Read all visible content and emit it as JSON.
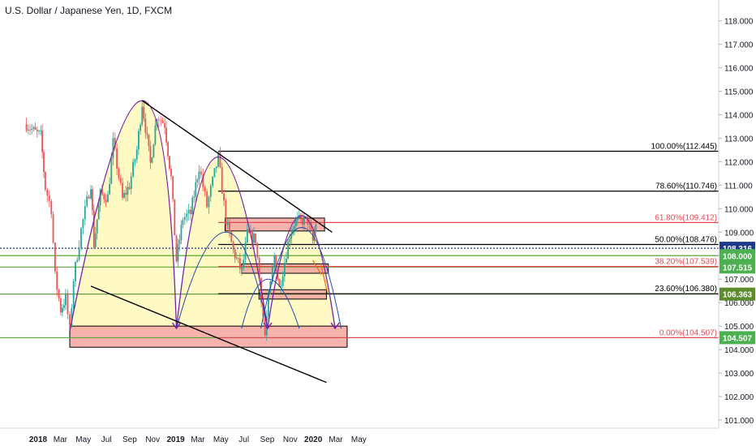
{
  "header": {
    "title": "U.S. Dollar / Japanese Yen, 1D, FXCM"
  },
  "colors": {
    "up": "#26a69a",
    "down": "#ef5350",
    "hline": "#5aa830",
    "fib_red": "#e8474f",
    "arc": "#7b1fa2",
    "blue_arc": "#1e4ba8",
    "zone_fill": "#f4a6a0",
    "tag_green": "#4caf50",
    "tag_navy": "#1e3a8a",
    "tag_green_dark": "#5d8c2e"
  },
  "chart_data": {
    "type": "candlestick",
    "title": "U.S. Dollar / Japanese Yen, 1D, FXCM",
    "x_ticks": [
      "2018",
      "Mar",
      "May",
      "Jul",
      "Sep",
      "Nov",
      "2019",
      "Mar",
      "May",
      "Jul",
      "Sep",
      "Nov",
      "2020",
      "Mar",
      "May"
    ],
    "y_ticks": [
      "118.000",
      "117.000",
      "116.000",
      "115.000",
      "114.000",
      "113.000",
      "112.000",
      "111.000",
      "110.000",
      "109.000",
      "108.000",
      "107.000",
      "106.000",
      "105.000",
      "104.000",
      "103.000",
      "102.000",
      "101.000"
    ],
    "ylim": [
      100.5,
      118.5
    ],
    "price_path": [
      [
        "2017-12-01",
        113.6
      ],
      [
        "2017-12-20",
        113.3
      ],
      [
        "2018-01-08",
        113.1
      ],
      [
        "2018-01-20",
        110.9
      ],
      [
        "2018-02-05",
        110.0
      ],
      [
        "2018-02-15",
        107.1
      ],
      [
        "2018-03-02",
        105.7
      ],
      [
        "2018-03-15",
        106.2
      ],
      [
        "2018-03-26",
        104.8
      ],
      [
        "2018-04-05",
        107.0
      ],
      [
        "2018-04-25",
        109.1
      ],
      [
        "2018-05-21",
        111.1
      ],
      [
        "2018-05-29",
        108.5
      ],
      [
        "2018-06-15",
        110.6
      ],
      [
        "2018-07-05",
        110.5
      ],
      [
        "2018-07-19",
        112.8
      ],
      [
        "2018-08-13",
        110.4
      ],
      [
        "2018-08-31",
        111.0
      ],
      [
        "2018-09-20",
        112.5
      ],
      [
        "2018-10-04",
        114.5
      ],
      [
        "2018-10-26",
        111.9
      ],
      [
        "2018-11-12",
        114.0
      ],
      [
        "2018-12-03",
        113.6
      ],
      [
        "2018-12-20",
        111.3
      ],
      [
        "2019-01-03",
        107.8
      ],
      [
        "2019-01-20",
        109.6
      ],
      [
        "2019-02-10",
        109.8
      ],
      [
        "2019-03-04",
        111.8
      ],
      [
        "2019-03-25",
        110.1
      ],
      [
        "2019-04-24",
        112.2
      ],
      [
        "2019-05-14",
        109.5
      ],
      [
        "2019-06-03",
        108.2
      ],
      [
        "2019-06-25",
        107.3
      ],
      [
        "2019-07-10",
        108.9
      ],
      [
        "2019-08-01",
        108.7
      ],
      [
        "2019-08-26",
        104.6
      ],
      [
        "2019-09-04",
        106.1
      ],
      [
        "2019-09-20",
        108.0
      ],
      [
        "2019-10-03",
        106.6
      ],
      [
        "2019-10-31",
        108.9
      ],
      [
        "2019-11-12",
        109.4
      ],
      [
        "2019-11-29",
        109.5
      ],
      [
        "2019-12-17",
        109.5
      ],
      [
        "2019-12-31",
        108.6
      ],
      [
        "2020-01-08",
        109.4
      ],
      [
        "2020-01-14",
        109.9
      ]
    ],
    "horizontal_levels": [
      {
        "value": 108.316,
        "label": "108.316",
        "style": "navy-dotted"
      },
      {
        "value": 108.0,
        "label": "108.000",
        "style": "green"
      },
      {
        "value": 107.515,
        "label": "107.515",
        "style": "green"
      },
      {
        "value": 106.363,
        "label": "106.363",
        "style": "green-dark"
      },
      {
        "value": 104.507,
        "label": "104.507",
        "style": "green"
      }
    ],
    "fibonacci": [
      {
        "label": "100.00%(112.445)",
        "value": 112.445,
        "color": "#000000"
      },
      {
        "label": "78.60%(110.746)",
        "value": 110.746,
        "color": "#000000"
      },
      {
        "label": "61.80%(109.412)",
        "value": 109.412,
        "color": "#e8474f"
      },
      {
        "label": "50.00%(108.476)",
        "value": 108.476,
        "color": "#000000"
      },
      {
        "label": "38.20%(107.539)",
        "value": 107.539,
        "color": "#e8474f"
      },
      {
        "label": "23.60%(106.380)",
        "value": 106.38,
        "color": "#000000"
      },
      {
        "label": "0.00%(104.507)",
        "value": 104.507,
        "color": "#e8474f"
      }
    ],
    "trendlines": [
      {
        "from": [
          "2018-10-04",
          114.6
        ],
        "to": [
          "2020-02-20",
          109.0
        ]
      },
      {
        "from": [
          "2018-05-21",
          106.7
        ],
        "to": [
          "2020-02-05",
          102.6
        ]
      }
    ],
    "zones": [
      {
        "from": "2018-03-26",
        "to": "2020-03-31",
        "low": 104.1,
        "high": 105.0
      },
      {
        "from": "2019-05-12",
        "to": "2020-01-31",
        "low": 109.05,
        "high": 109.6
      },
      {
        "from": "2019-06-25",
        "to": "2020-02-10",
        "low": 107.25,
        "high": 107.65
      },
      {
        "from": "2019-08-10",
        "to": "2020-02-05",
        "low": 106.15,
        "high": 106.55
      }
    ],
    "grid": false,
    "legend": "none"
  }
}
